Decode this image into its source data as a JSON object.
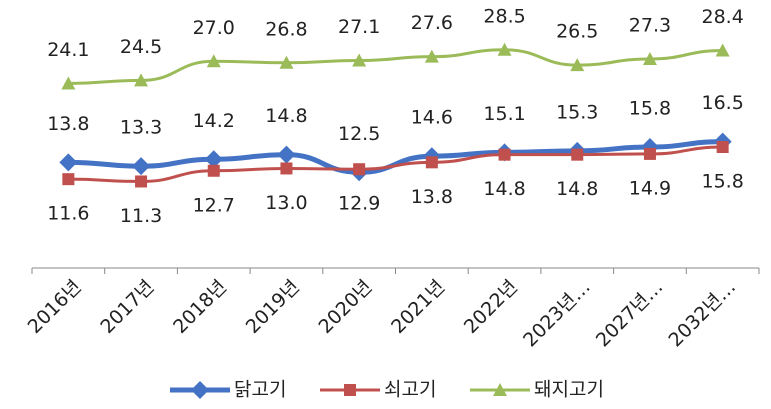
{
  "chart_data": {
    "type": "line",
    "categories": [
      "2016년",
      "2017년",
      "2018년",
      "2019년",
      "2020년",
      "2021년",
      "2022년",
      "2023년…",
      "2027년…",
      "2032년…"
    ],
    "ylim": [
      0,
      35
    ],
    "legend": "bottom",
    "series": [
      {
        "name": "닭고기",
        "color": "#4472c4",
        "marker": "diamond",
        "values": [
          13.8,
          13.3,
          14.2,
          14.8,
          12.5,
          14.6,
          15.1,
          15.3,
          15.8,
          16.5
        ],
        "value_labels": [
          "13.8",
          "13.3",
          "14.2",
          "14.8",
          "12.5",
          "14.6",
          "15.1",
          "15.3",
          "15.8",
          "16.5"
        ]
      },
      {
        "name": "쇠고기",
        "color": "#c0504d",
        "marker": "square",
        "values": [
          11.6,
          11.3,
          12.7,
          13.0,
          12.9,
          13.8,
          14.8,
          14.8,
          14.9,
          15.8
        ],
        "value_labels": [
          "11.6",
          "11.3",
          "12.7",
          "13.0",
          "12.9",
          "13.8",
          "14.8",
          "14.8",
          "14.9",
          "15.8"
        ]
      },
      {
        "name": "돼지고기",
        "color": "#9bbb59",
        "marker": "triangle",
        "values": [
          24.1,
          24.5,
          27.0,
          26.8,
          27.1,
          27.6,
          28.5,
          26.5,
          27.3,
          28.4
        ],
        "value_labels": [
          "24.1",
          "24.5",
          "27.0",
          "26.8",
          "27.1",
          "27.6",
          "28.5",
          "26.5",
          "27.3",
          "28.4"
        ]
      }
    ]
  }
}
